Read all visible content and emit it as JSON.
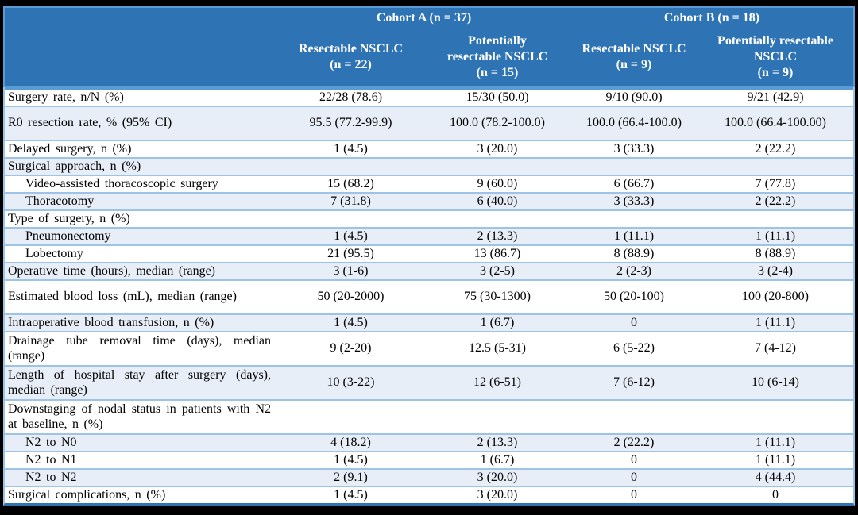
{
  "header": {
    "cohort_a": "Cohort A (n = 37)",
    "cohort_b": "Cohort B (n = 18)",
    "columns": [
      "Resectable NSCLC\n(n = 22)",
      "Potentially\nresectable NSCLC\n(n = 15)",
      "Resectable NSCLC\n(n = 9)",
      "Potentially resectable\nNSCLC\n(n = 9)"
    ]
  },
  "rows": [
    {
      "label": "Surgery rate, n/N (%)",
      "indent": false,
      "shaded": false,
      "tall": false,
      "values": [
        "22/28 (78.6)",
        "15/30 (50.0)",
        "9/10 (90.0)",
        "9/21 (42.9)"
      ]
    },
    {
      "label": "R0 resection rate, % (95% CI)",
      "indent": false,
      "shaded": true,
      "tall": true,
      "values": [
        "95.5 (77.2-99.9)",
        "100.0 (78.2-100.0)",
        "100.0 (66.4-100.0)",
        "100.0 (66.4-100.00)"
      ]
    },
    {
      "label": "Delayed surgery, n (%)",
      "indent": false,
      "shaded": false,
      "tall": false,
      "values": [
        "1 (4.5)",
        "3 (20.0)",
        "3 (33.3)",
        "2 (22.2)"
      ]
    },
    {
      "label": "Surgical approach, n (%)",
      "indent": false,
      "shaded": true,
      "tall": false,
      "values": [
        "",
        "",
        "",
        ""
      ]
    },
    {
      "label": "Video-assisted thoracoscopic surgery",
      "indent": true,
      "shaded": false,
      "tall": false,
      "values": [
        "15 (68.2)",
        "9 (60.0)",
        "6 (66.7)",
        "7 (77.8)"
      ]
    },
    {
      "label": "Thoracotomy",
      "indent": true,
      "shaded": true,
      "tall": false,
      "values": [
        "7 (31.8)",
        "6 (40.0)",
        "3 (33.3)",
        "2 (22.2)"
      ]
    },
    {
      "label": "Type of surgery, n (%)",
      "indent": false,
      "shaded": false,
      "tall": false,
      "values": [
        "",
        "",
        "",
        ""
      ]
    },
    {
      "label": "Pneumonectomy",
      "indent": true,
      "shaded": true,
      "tall": false,
      "values": [
        "1 (4.5)",
        "2 (13.3)",
        "1 (11.1)",
        "1 (11.1)"
      ]
    },
    {
      "label": "Lobectomy",
      "indent": true,
      "shaded": false,
      "tall": false,
      "values": [
        "21 (95.5)",
        "13 (86.7)",
        "8 (88.9)",
        "8 (88.9)"
      ]
    },
    {
      "label": "Operative time (hours), median (range)",
      "indent": false,
      "shaded": true,
      "tall": false,
      "values": [
        "3 (1-6)",
        "3 (2-5)",
        "2 (2-3)",
        "3 (2-4)"
      ]
    },
    {
      "label": "Estimated blood loss (mL), median (range)",
      "indent": false,
      "shaded": false,
      "tall": true,
      "values": [
        "50 (20-2000)",
        "75 (30-1300)",
        "50 (20-100)",
        "100 (20-800)"
      ]
    },
    {
      "label": "Intraoperative blood transfusion, n (%)",
      "indent": false,
      "shaded": true,
      "tall": false,
      "values": [
        "1 (4.5)",
        "1 (6.7)",
        "0",
        "1 (11.1)"
      ]
    },
    {
      "label": "Drainage tube removal time (days), median (range)",
      "indent": false,
      "shaded": false,
      "tall": true,
      "values": [
        "9 (2-20)",
        "12.5 (5-31)",
        "6 (5-22)",
        "7 (4-12)"
      ]
    },
    {
      "label": "Length of hospital stay after surgery (days), median (range)",
      "indent": false,
      "shaded": true,
      "tall": true,
      "values": [
        "10 (3-22)",
        "12 (6-51)",
        "7 (6-12)",
        "10 (6-14)"
      ]
    },
    {
      "label": "Downstaging of nodal status in patients with N2 at baseline, n (%)",
      "indent": false,
      "shaded": false,
      "tall": true,
      "values": [
        "",
        "",
        "",
        ""
      ]
    },
    {
      "label": "N2 to N0",
      "indent": true,
      "shaded": true,
      "tall": false,
      "values": [
        "4 (18.2)",
        "2 (13.3)",
        "2 (22.2)",
        "1 (11.1)"
      ]
    },
    {
      "label": "N2 to N1",
      "indent": true,
      "shaded": false,
      "tall": false,
      "values": [
        "1 (4.5)",
        "1 (6.7)",
        "0",
        "1 (11.1)"
      ]
    },
    {
      "label": "N2 to N2",
      "indent": true,
      "shaded": true,
      "tall": false,
      "values": [
        "2 (9.1)",
        "3 (20.0)",
        "0",
        "4 (44.4)"
      ]
    },
    {
      "label": "Surgical complications, n (%)",
      "indent": false,
      "shaded": false,
      "tall": false,
      "values": [
        "1 (4.5)",
        "3 (20.0)",
        "0",
        "0"
      ]
    }
  ],
  "colors": {
    "header_bg": "#2e74b5",
    "header_text": "#ffffff",
    "shaded_row_bg": "#e8eef7",
    "row_separator": "#9dc3e6",
    "header_separator": "#5b9bd5",
    "table_bottom_border": "#2e74b5",
    "outer_frame": "#000000",
    "body_text": "#000000"
  }
}
